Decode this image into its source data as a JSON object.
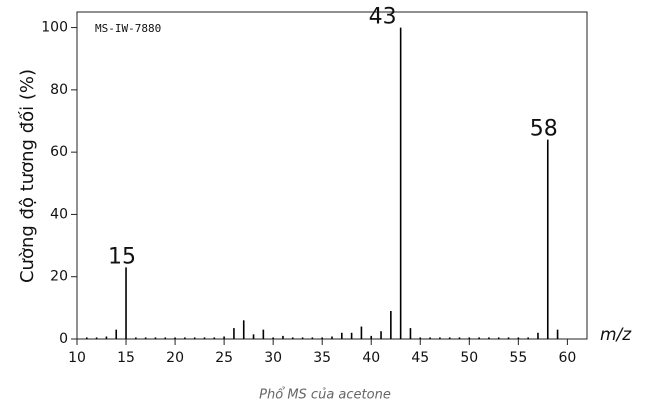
{
  "chart_data": {
    "type": "bar",
    "annotation": "MS-IW-7880",
    "ylabel": "Cường độ tương đối (%)",
    "xlabel": "m/z",
    "caption": "Phổ MS của acetone",
    "x": [
      11,
      12,
      13,
      14,
      15,
      16,
      17,
      18,
      19,
      20,
      21,
      22,
      23,
      24,
      25,
      26,
      27,
      28,
      29,
      30,
      31,
      32,
      33,
      34,
      35,
      36,
      37,
      38,
      39,
      40,
      41,
      42,
      43,
      44,
      45,
      46,
      47,
      48,
      49,
      50,
      51,
      52,
      53,
      54,
      55,
      56,
      57,
      58,
      59
    ],
    "values": [
      0.5,
      0.5,
      0.8,
      3,
      23,
      0.5,
      0.5,
      0.5,
      0.5,
      0.5,
      0.5,
      0.5,
      0.5,
      0.5,
      0.8,
      3.5,
      6,
      1.5,
      3,
      0.5,
      1,
      0.5,
      0.5,
      0.5,
      0.5,
      0.8,
      2,
      2,
      4,
      1,
      2.5,
      9,
      100,
      3.5,
      0.5,
      0.5,
      0.5,
      0.5,
      0.5,
      0.5,
      0.5,
      0.5,
      0.5,
      0.5,
      0.5,
      0.5,
      2,
      64,
      3
    ],
    "color": "#000000",
    "xlim": [
      10,
      62
    ],
    "ylim": [
      0,
      105
    ],
    "xticks": [
      10,
      15,
      20,
      25,
      30,
      35,
      40,
      45,
      50,
      55,
      60
    ],
    "yticks": [
      0,
      20,
      40,
      60,
      80,
      100
    ]
  }
}
